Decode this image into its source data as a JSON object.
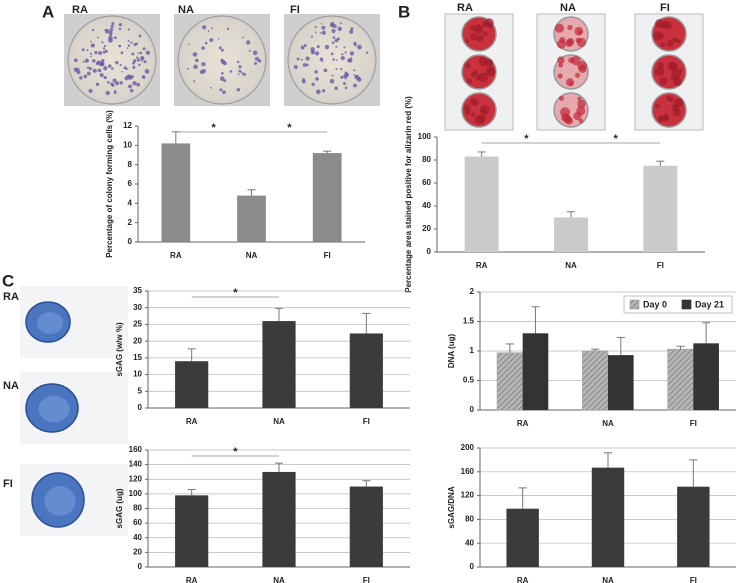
{
  "panel_labels": [
    "A",
    "B",
    "C"
  ],
  "photos_a": {
    "labels": [
      "RA",
      "NA",
      "FI"
    ]
  },
  "photos_b": {
    "labels": [
      "RA",
      "NA",
      "FI"
    ]
  },
  "photos_c": {
    "labels": [
      "RA",
      "NA",
      "FI"
    ]
  },
  "chart_data": [
    {
      "type": "bar",
      "ylabel": "Percentage of colony forming cells (%)",
      "categories": [
        "RA",
        "NA",
        "FI"
      ],
      "values": [
        10.2,
        4.8,
        9.2
      ],
      "errors": [
        1.2,
        0.6,
        0.2
      ],
      "color": "#8b8c89",
      "ylim": [
        0,
        12
      ],
      "yticks": [
        0,
        2,
        4,
        6,
        8,
        10,
        12
      ],
      "grid": false,
      "annotations": [
        "*",
        "*"
      ]
    },
    {
      "type": "bar",
      "ylabel": "Percentage area stained positive for alizarin red (%)",
      "categories": [
        "RA",
        "NA",
        "FI"
      ],
      "values": [
        83,
        30,
        75
      ],
      "errors": [
        4,
        5,
        4
      ],
      "color": "#c9caca",
      "ylim": [
        0,
        100
      ],
      "yticks": [
        0,
        20,
        40,
        60,
        80,
        100
      ],
      "grid": false,
      "annotations": [
        "*",
        "*"
      ]
    },
    {
      "type": "bar",
      "ylabel": "sGAG (w/w %)",
      "categories": [
        "RA",
        "NA",
        "FI"
      ],
      "values": [
        14,
        26,
        22.3
      ],
      "errors": [
        3.7,
        3.8,
        6
      ],
      "color": "#3b3b3b",
      "ylim": [
        0,
        35
      ],
      "yticks": [
        0,
        5,
        10,
        15,
        20,
        25,
        30,
        35
      ],
      "grid": true,
      "annotations": [
        "*"
      ]
    },
    {
      "type": "bar",
      "ylabel": "DNA (ug)",
      "categories": [
        "RA",
        "NA",
        "FI"
      ],
      "series": [
        {
          "name": "Day 0",
          "color": "#9d9d9d",
          "hatch": true,
          "values": [
            0.97,
            1.0,
            1.03
          ],
          "errors": [
            0.15,
            0.03,
            0.05
          ]
        },
        {
          "name": "Day 21",
          "color": "#333333",
          "hatch": false,
          "values": [
            1.3,
            0.93,
            1.13
          ],
          "errors": [
            0.45,
            0.3,
            0.35
          ]
        }
      ],
      "ylim": [
        0,
        2
      ],
      "yticks": [
        0,
        0.5,
        1,
        1.5,
        2
      ],
      "grid": true,
      "legend": "top-right"
    },
    {
      "type": "bar",
      "ylabel": "sGAG (ug)",
      "categories": [
        "RA",
        "NA",
        "FI"
      ],
      "values": [
        98,
        130,
        110
      ],
      "errors": [
        8,
        12,
        8
      ],
      "color": "#3b3b3b",
      "ylim": [
        0,
        160
      ],
      "yticks": [
        0,
        20,
        40,
        60,
        80,
        100,
        120,
        140,
        160
      ],
      "grid": true,
      "annotations": [
        "*"
      ]
    },
    {
      "type": "bar",
      "ylabel": "sGAG/DNA",
      "categories": [
        "RA",
        "NA",
        "FI"
      ],
      "values": [
        98,
        167,
        135
      ],
      "errors": [
        35,
        25,
        45
      ],
      "color": "#3b3b3b",
      "ylim": [
        0,
        200
      ],
      "yticks": [
        0,
        40,
        80,
        120,
        160,
        200
      ],
      "grid": true
    }
  ]
}
